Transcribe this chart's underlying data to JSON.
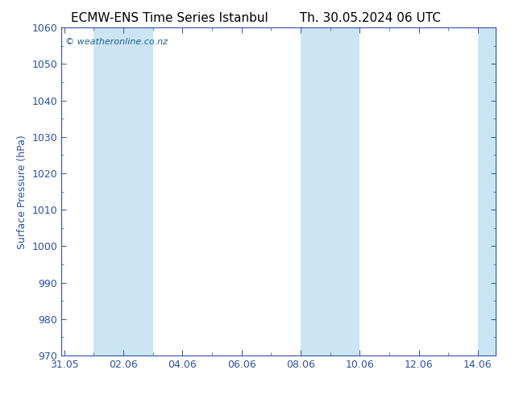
{
  "title": "ECMW-ENS Time Series Istanbul",
  "title_right": "Th. 30.05.2024 06 UTC",
  "ylabel": "Surface Pressure (hPa)",
  "ylim": [
    970,
    1060
  ],
  "yticks": [
    970,
    980,
    990,
    1000,
    1010,
    1020,
    1030,
    1040,
    1050,
    1060
  ],
  "xtick_positions": [
    0,
    2,
    4,
    6,
    8,
    10,
    12,
    14
  ],
  "xtick_labels": [
    "31.05",
    "02.06",
    "04.06",
    "06.06",
    "08.06",
    "10.06",
    "12.06",
    "14.06"
  ],
  "xlim": [
    -0.1,
    14.6
  ],
  "shaded_bands": [
    {
      "x_start": 1.0,
      "x_end": 3.0
    },
    {
      "x_start": 8.0,
      "x_end": 10.0
    },
    {
      "x_start": 14.0,
      "x_end": 14.6
    }
  ],
  "band_color": "#cce5f5",
  "watermark": "© weatheronline.co.nz",
  "watermark_color": "#1a5fa0",
  "background_color": "#ffffff",
  "spine_color": "#3050a0",
  "tick_color": "#3050a0",
  "title_fontsize": 11,
  "label_fontsize": 9,
  "tick_fontsize": 9
}
